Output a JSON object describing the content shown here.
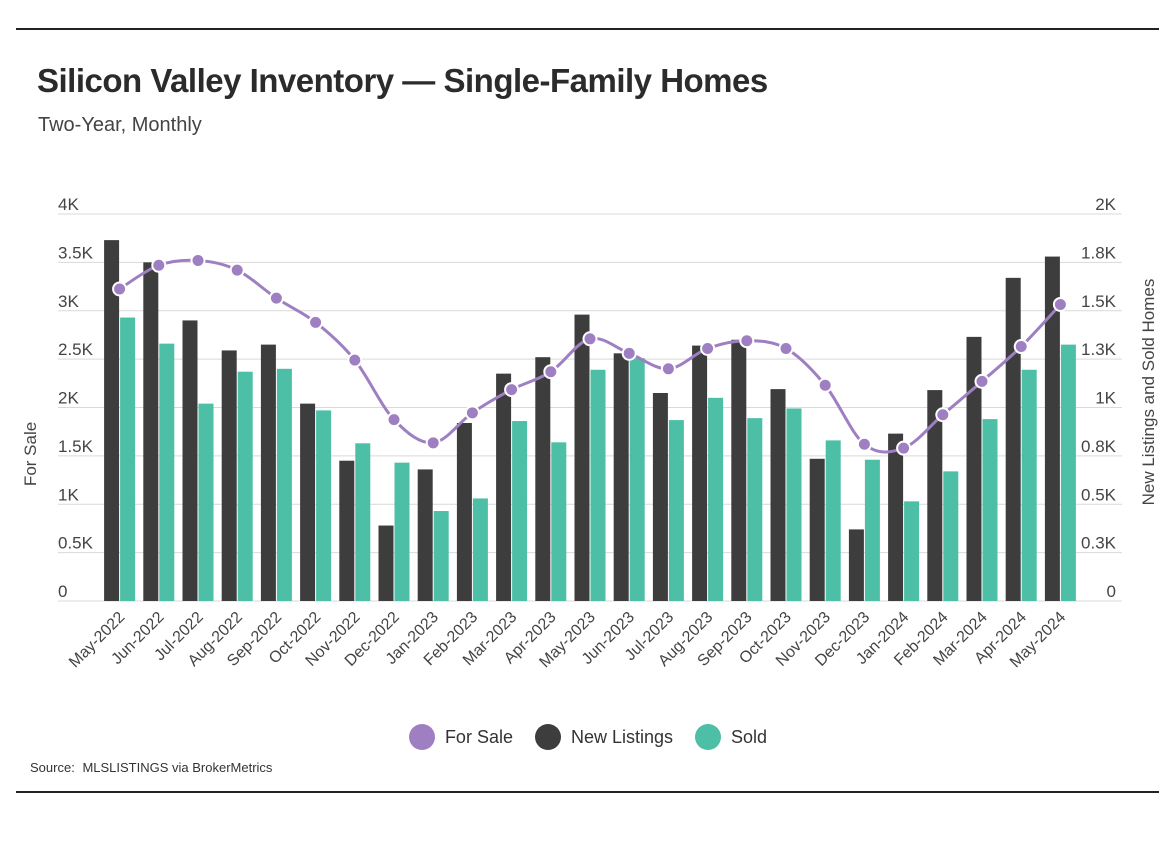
{
  "header": {
    "title": "Silicon Valley Inventory — Single-Family Homes",
    "subtitle": "Two-Year, Monthly"
  },
  "source": {
    "label": "Source:",
    "text": "MLSLISTINGS via BrokerMetrics"
  },
  "colors": {
    "for_sale": "#9e7fc2",
    "new_listings": "#3d3d3d",
    "sold": "#4cbfa6",
    "grid": "#d9d9d9",
    "axis_text": "#444444"
  },
  "legend": [
    {
      "name": "For Sale",
      "color": "#9e7fc2"
    },
    {
      "name": "New Listings",
      "color": "#3d3d3d"
    },
    {
      "name": "Sold",
      "color": "#4cbfa6"
    }
  ],
  "chart_data": {
    "type": "bar",
    "title": "Silicon Valley Inventory — Single-Family Homes",
    "subtitle": "Two-Year, Monthly",
    "categories": [
      "May-2022",
      "Jun-2022",
      "Jul-2022",
      "Aug-2022",
      "Sep-2022",
      "Oct-2022",
      "Nov-2022",
      "Dec-2022",
      "Jan-2023",
      "Feb-2023",
      "Mar-2023",
      "Apr-2023",
      "May-2023",
      "Jun-2023",
      "Jul-2023",
      "Aug-2023",
      "Sep-2023",
      "Oct-2023",
      "Nov-2023",
      "Dec-2023",
      "Jan-2024",
      "Feb-2024",
      "Mar-2024",
      "Apr-2024",
      "May-2024"
    ],
    "ylabel_left": "For Sale",
    "ylabel_right": "New Listings and Sold Homes",
    "ylim_left": [
      0,
      4000
    ],
    "ylim_right": [
      0,
      2000
    ],
    "yticks_left": [
      "0",
      "0.5K",
      "1K",
      "1.5K",
      "2K",
      "2.5K",
      "3K",
      "3.5K",
      "4K"
    ],
    "yticks_right": [
      "0",
      "0.3K",
      "0.5K",
      "0.8K",
      "1K",
      "1.3K",
      "1.5K",
      "1.8K",
      "2K"
    ],
    "grid": true,
    "legend_position": "bottom",
    "series": [
      {
        "name": "New Listings",
        "type": "bar",
        "axis": "right",
        "values": [
          1865,
          1750,
          1450,
          1295,
          1325,
          1020,
          725,
          390,
          680,
          920,
          1175,
          1260,
          1480,
          1280,
          1075,
          1320,
          1350,
          1095,
          735,
          370,
          865,
          1090,
          1365,
          1670,
          1780
        ]
      },
      {
        "name": "Sold",
        "type": "bar",
        "axis": "right",
        "values": [
          1465,
          1330,
          1020,
          1185,
          1200,
          985,
          815,
          715,
          465,
          530,
          930,
          820,
          1195,
          1255,
          935,
          1050,
          945,
          995,
          830,
          730,
          515,
          670,
          940,
          1195,
          1325
        ]
      },
      {
        "name": "For Sale",
        "type": "line",
        "axis": "left",
        "values": [
          3225,
          3470,
          3520,
          3420,
          3130,
          2880,
          2490,
          1875,
          1635,
          1945,
          2185,
          2370,
          2710,
          2560,
          2400,
          2610,
          2690,
          2610,
          2230,
          1620,
          1580,
          1925,
          2270,
          2630,
          3065
        ]
      }
    ]
  }
}
